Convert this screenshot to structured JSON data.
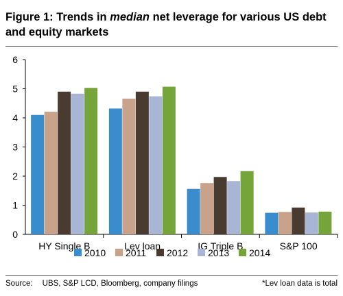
{
  "figure": {
    "title_prefix": "Figure 1: Trends in ",
    "title_emphasis": "median",
    "title_suffix": " net leverage for various US debt and equity markets"
  },
  "source": {
    "label": "Source:",
    "text": "UBS, S&P LCD, Bloomberg, company filings",
    "note": "*Lev loan data is total"
  },
  "chart_data": {
    "type": "bar",
    "title": "Figure 1: Trends in median net leverage for various US debt and equity markets",
    "xlabel": "",
    "ylabel": "",
    "ylim": [
      0,
      6
    ],
    "yticks": [
      0,
      1,
      2,
      3,
      4,
      5,
      6
    ],
    "grid": false,
    "legend_position": "bottom",
    "categories": [
      "HY Single B",
      "Lev loan",
      "IG Triple B",
      "S&P 100"
    ],
    "series": [
      {
        "name": "2010",
        "color": "#3a8dcc",
        "values": [
          4.1,
          4.32,
          1.56,
          0.74
        ]
      },
      {
        "name": "2011",
        "color": "#c8a28a",
        "values": [
          4.21,
          4.66,
          1.76,
          0.77
        ]
      },
      {
        "name": "2012",
        "color": "#4a3b31",
        "values": [
          4.9,
          4.9,
          1.97,
          0.92
        ]
      },
      {
        "name": "2013",
        "color": "#a9b5d4",
        "values": [
          4.83,
          4.74,
          1.83,
          0.75
        ]
      },
      {
        "name": "2014",
        "color": "#75a43a",
        "values": [
          5.03,
          5.07,
          2.17,
          0.78
        ]
      }
    ]
  }
}
